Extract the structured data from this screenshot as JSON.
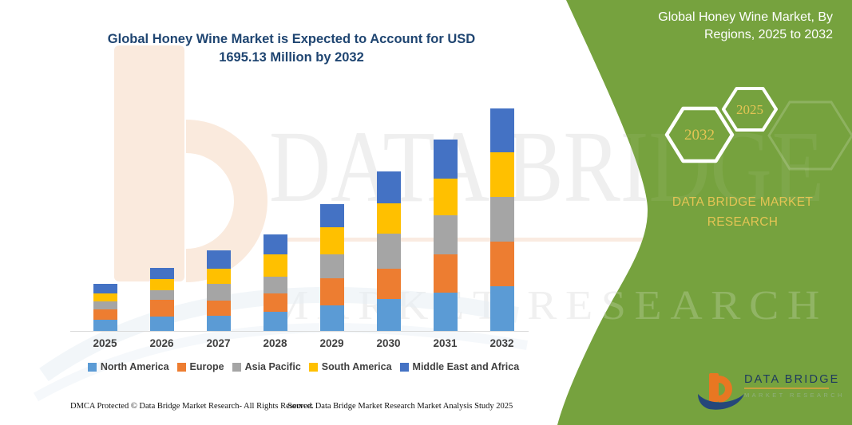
{
  "colors": {
    "green": "#76A23E",
    "gold": "#E3C454",
    "navy": "#1E3A5E",
    "title_blue": "#1F4571",
    "axis_text": "#404040"
  },
  "title_lines": [
    "Global Honey Wine Market is Expected to Account for USD",
    "1695.13 Million by 2032"
  ],
  "panel": {
    "title_lines": [
      "Global Honey Wine Market, By",
      "Regions, 2025 to 2032"
    ],
    "hexagons": [
      {
        "year": "2032"
      },
      {
        "year": "2025"
      }
    ],
    "brand_lines": [
      "DATA BRIDGE MARKET",
      "RESEARCH"
    ]
  },
  "watermark": {
    "line1": "DATA BRIDGE",
    "line2": "MARKET RESEARCH"
  },
  "logo": {
    "line1": "DATA BRIDGE",
    "line2": "MARKET RESEARCH"
  },
  "footer": {
    "left": "DMCA Protected © Data Bridge Market Research-  All Rights Reserved.",
    "right": "Source: Data Bridge Market Research  Market Analysis Study 2025"
  },
  "chart_data": {
    "type": "bar",
    "stacked": true,
    "title": "Global Honey Wine Market is Expected to Account for USD 1695.13 Million by 2032",
    "unit": "USD Million",
    "categories": [
      "2025",
      "2026",
      "2027",
      "2028",
      "2029",
      "2030",
      "2031",
      "2032"
    ],
    "series": [
      {
        "name": "North America",
        "color": "#5B9BD5",
        "values": [
          85,
          109,
          116,
          147,
          195,
          242,
          293,
          340
        ]
      },
      {
        "name": "Europe",
        "color": "#ED7D31",
        "values": [
          81,
          128,
          116,
          139,
          206,
          234,
          291,
          339
        ]
      },
      {
        "name": "Asia Pacific",
        "color": "#A5A5A5",
        "values": [
          57,
          72,
          128,
          130,
          183,
          265,
          295,
          343
        ]
      },
      {
        "name": "South America",
        "color": "#FFC000",
        "values": [
          65,
          85,
          116,
          165,
          208,
          234,
          283,
          336
        ]
      },
      {
        "name": "Middle East and Africa",
        "color": "#4472C4",
        "values": [
          71,
          86,
          139,
          153,
          177,
          240,
          295,
          337.13
        ]
      }
    ],
    "stack_order": "first series at bottom",
    "annotations": [
      "2032 total = 1695.13 USD Million; other yearly totals estimated from bar heights"
    ],
    "xlabel": "",
    "ylabel": "",
    "ylim": [
      0,
      1800
    ],
    "y_axis_visible": false,
    "grid": false,
    "legend_position": "bottom"
  }
}
